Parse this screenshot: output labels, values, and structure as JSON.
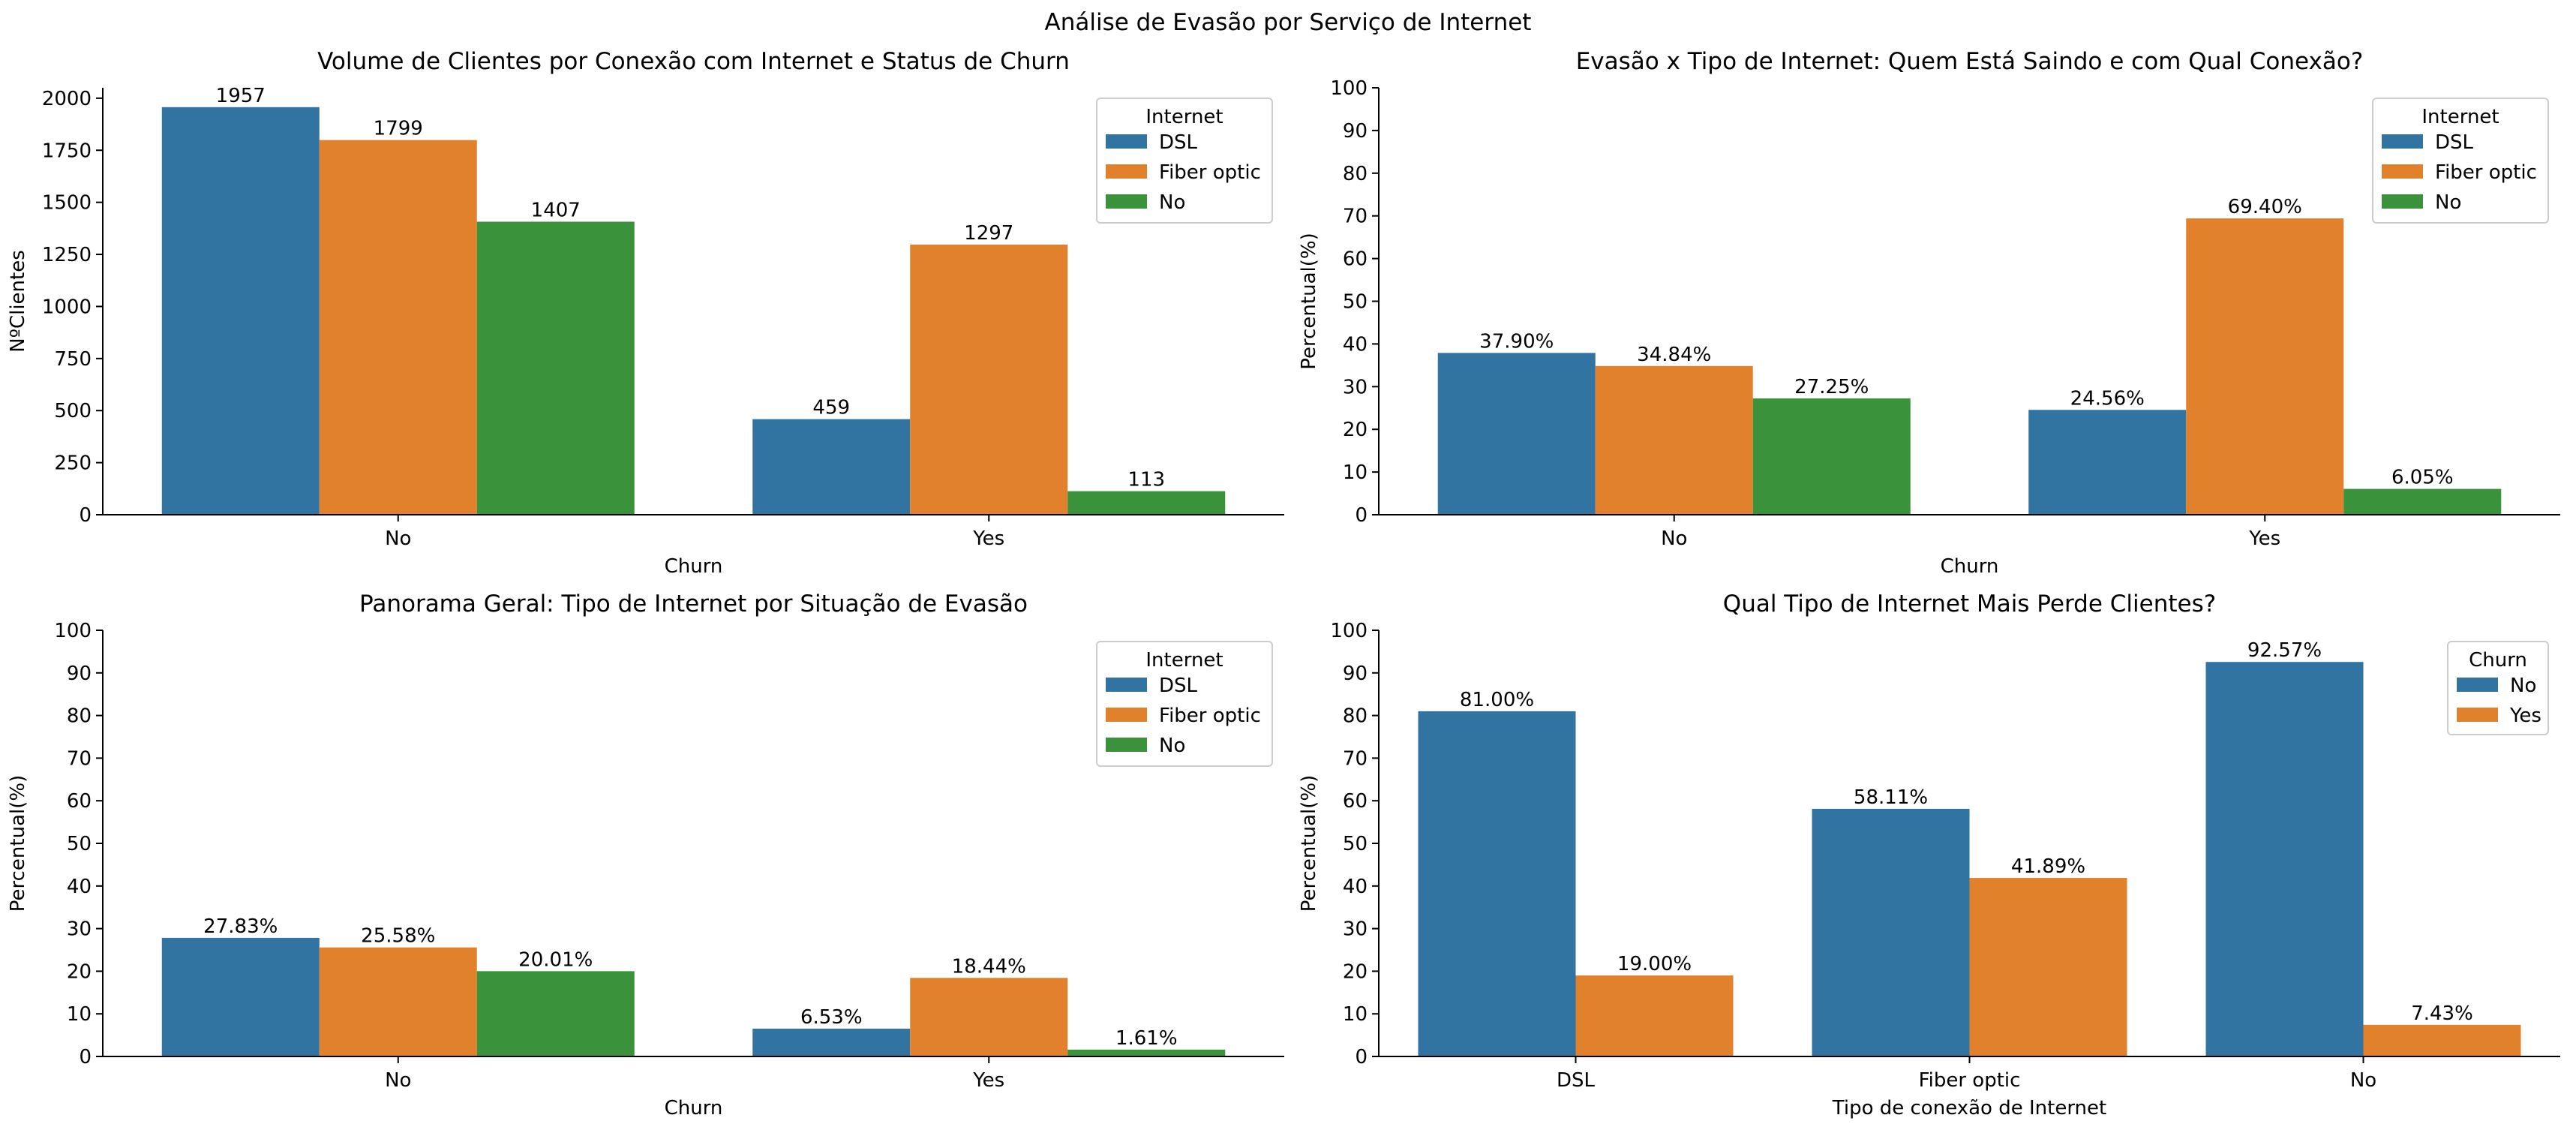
{
  "suptitle": "Análise de Evasão por Serviço de Internet",
  "colors": {
    "DSL": "#3274a1",
    "Fiber optic": "#e1812c",
    "No": "#3a923a",
    "Churn No": "#3274a1",
    "Churn Yes": "#e1812c"
  },
  "chart_data": [
    {
      "type": "bar",
      "title": "Volume de Clientes por Conexão com Internet e Status de Churn",
      "xlabel": "Churn",
      "ylabel": "NºClientes",
      "categories": [
        "No",
        "Yes"
      ],
      "ylim": [
        0,
        2050
      ],
      "yticks": [
        "0",
        "250",
        "500",
        "750",
        "1000",
        "1250",
        "1500",
        "1750",
        "2000"
      ],
      "legend_title": "Internet",
      "legend_position": "top-right",
      "series": [
        {
          "name": "DSL",
          "values": [
            1957,
            459
          ],
          "labels": [
            "1957",
            "459"
          ]
        },
        {
          "name": "Fiber optic",
          "values": [
            1799,
            1297
          ],
          "labels": [
            "1799",
            "1297"
          ]
        },
        {
          "name": "No",
          "values": [
            1407,
            113
          ],
          "labels": [
            "1407",
            "113"
          ]
        }
      ]
    },
    {
      "type": "bar",
      "title": "Evasão x Tipo de Internet: Quem Está Saindo e com Qual Conexão?",
      "xlabel": "Churn",
      "ylabel": "Percentual(%)",
      "categories": [
        "No",
        "Yes"
      ],
      "ylim": [
        0,
        100
      ],
      "yticks": [
        "0",
        "10",
        "20",
        "30",
        "40",
        "50",
        "60",
        "70",
        "80",
        "90",
        "100"
      ],
      "legend_title": "Internet",
      "legend_position": "top-right",
      "series": [
        {
          "name": "DSL",
          "values": [
            37.9,
            24.56
          ],
          "labels": [
            "37.90%",
            "24.56%"
          ]
        },
        {
          "name": "Fiber optic",
          "values": [
            34.84,
            69.4
          ],
          "labels": [
            "34.84%",
            "69.40%"
          ]
        },
        {
          "name": "No",
          "values": [
            27.25,
            6.05
          ],
          "labels": [
            "27.25%",
            "6.05%"
          ]
        }
      ]
    },
    {
      "type": "bar",
      "title": "Panorama Geral: Tipo de Internet por Situação de Evasão",
      "xlabel": "Churn",
      "ylabel": "Percentual(%)",
      "categories": [
        "No",
        "Yes"
      ],
      "ylim": [
        0,
        100
      ],
      "yticks": [
        "0",
        "10",
        "20",
        "30",
        "40",
        "50",
        "60",
        "70",
        "80",
        "90",
        "100"
      ],
      "legend_title": "Internet",
      "legend_position": "top-right",
      "series": [
        {
          "name": "DSL",
          "values": [
            27.83,
            6.53
          ],
          "labels": [
            "27.83%",
            "6.53%"
          ]
        },
        {
          "name": "Fiber optic",
          "values": [
            25.58,
            18.44
          ],
          "labels": [
            "25.58%",
            "18.44%"
          ]
        },
        {
          "name": "No",
          "values": [
            20.01,
            1.61
          ],
          "labels": [
            "20.01%",
            "1.61%"
          ]
        }
      ]
    },
    {
      "type": "bar",
      "title": "Qual Tipo de Internet Mais Perde Clientes?",
      "xlabel": "Tipo de conexão de Internet",
      "ylabel": "Percentual(%)",
      "categories": [
        "DSL",
        "Fiber optic",
        "No"
      ],
      "ylim": [
        0,
        100
      ],
      "yticks": [
        "0",
        "10",
        "20",
        "30",
        "40",
        "50",
        "60",
        "70",
        "80",
        "90",
        "100"
      ],
      "legend_title": "Churn",
      "legend_position": "top-right",
      "series": [
        {
          "name": "No",
          "values": [
            81.0,
            58.11,
            92.57
          ],
          "labels": [
            "81.00%",
            "58.11%",
            "92.57%"
          ]
        },
        {
          "name": "Yes",
          "values": [
            19.0,
            41.89,
            7.43
          ],
          "labels": [
            "19.00%",
            "41.89%",
            "7.43%"
          ]
        }
      ]
    }
  ]
}
